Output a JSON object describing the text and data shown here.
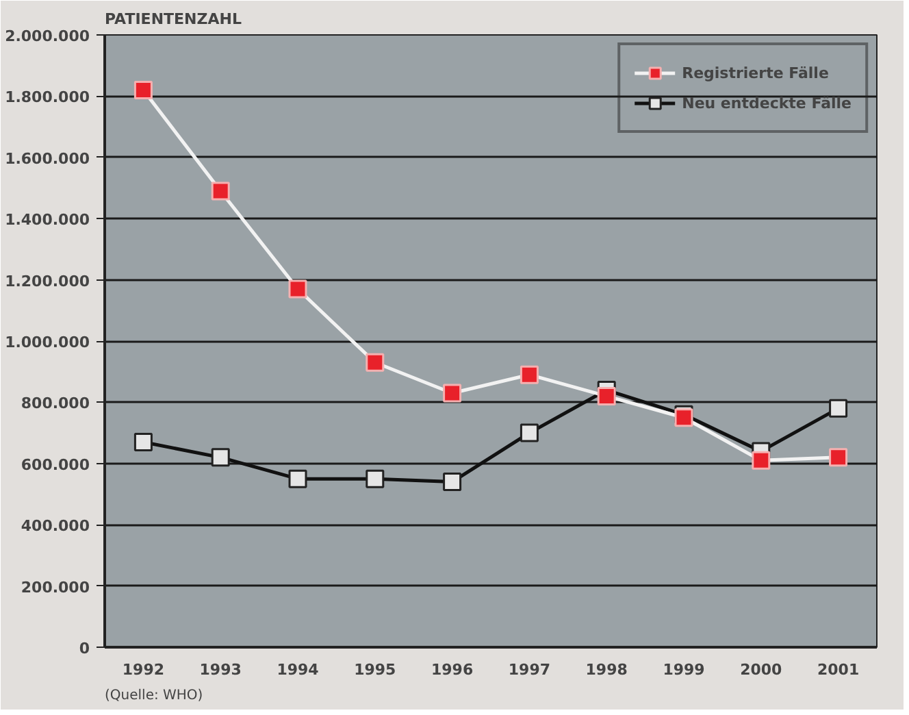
{
  "chart_data": {
    "type": "line",
    "ylabel": "PATIENTENZAHL",
    "categories": [
      "1992",
      "1993",
      "1994",
      "1995",
      "1996",
      "1997",
      "1998",
      "1999",
      "2000",
      "2001"
    ],
    "series": [
      {
        "name": "Registrierte Fälle",
        "color": "#e8212a",
        "values": [
          1820000,
          1490000,
          1170000,
          930000,
          830000,
          890000,
          820000,
          750000,
          610000,
          620000
        ]
      },
      {
        "name": "Neu entdeckte Fälle",
        "color": "#e6e6e6",
        "values": [
          670000,
          620000,
          550000,
          550000,
          540000,
          700000,
          840000,
          760000,
          640000,
          780000
        ]
      }
    ],
    "ylim": [
      0,
      2000000
    ],
    "yticks": [
      {
        "value": 0,
        "label": "0"
      },
      {
        "value": 200000,
        "label": "200.000"
      },
      {
        "value": 400000,
        "label": "400.000"
      },
      {
        "value": 600000,
        "label": "600.000"
      },
      {
        "value": 800000,
        "label": "800.000"
      },
      {
        "value": 1000000,
        "label": "1.000.000"
      },
      {
        "value": 1200000,
        "label": "1.200.000"
      },
      {
        "value": 1400000,
        "label": "1.400.000"
      },
      {
        "value": 1600000,
        "label": "1.600.000"
      },
      {
        "value": 1800000,
        "label": "1.800.000"
      },
      {
        "value": 2000000,
        "label": "2.000.000"
      }
    ],
    "grid": "y",
    "legend": "top right",
    "marker": "square",
    "line_style": "solid",
    "annotations": [
      "(Quelle: WHO)"
    ]
  }
}
